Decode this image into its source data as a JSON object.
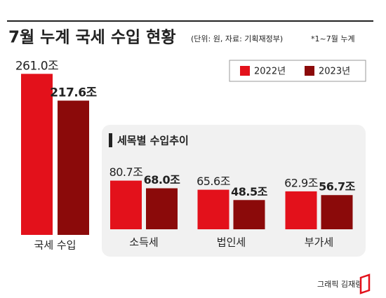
{
  "title": "7월 누계 국세 수입 현황",
  "subtitle": "(단위: 원, 자료: 기획재정부)",
  "note": "*1~7월 누계",
  "credit": "그래픽 김재령",
  "chart_data": [
    {
      "type": "bar",
      "categories": [
        "국세 수입"
      ],
      "ylim": [
        0,
        300
      ],
      "series": [
        {
          "name": "2022년",
          "color": "#e3111b",
          "values": [
            261.0
          ],
          "value_labels": [
            "261.0조"
          ]
        },
        {
          "name": "2023년",
          "color": "#8b0a0a",
          "values": [
            217.6
          ],
          "value_labels": [
            "217.6조"
          ]
        }
      ]
    },
    {
      "type": "bar",
      "title": "세목별 수입추이",
      "categories": [
        "소득세",
        "법인세",
        "부가세"
      ],
      "ylim": [
        0,
        100
      ],
      "series": [
        {
          "name": "2022년",
          "color": "#e3111b",
          "values": [
            80.7,
            65.6,
            62.9
          ],
          "value_labels": [
            "80.7조",
            "65.6조",
            "62.9조"
          ]
        },
        {
          "name": "2023년",
          "color": "#8b0a0a",
          "values": [
            68.0,
            48.5,
            56.7
          ],
          "value_labels": [
            "68.0조",
            "48.5조",
            "56.7조"
          ]
        }
      ]
    }
  ]
}
